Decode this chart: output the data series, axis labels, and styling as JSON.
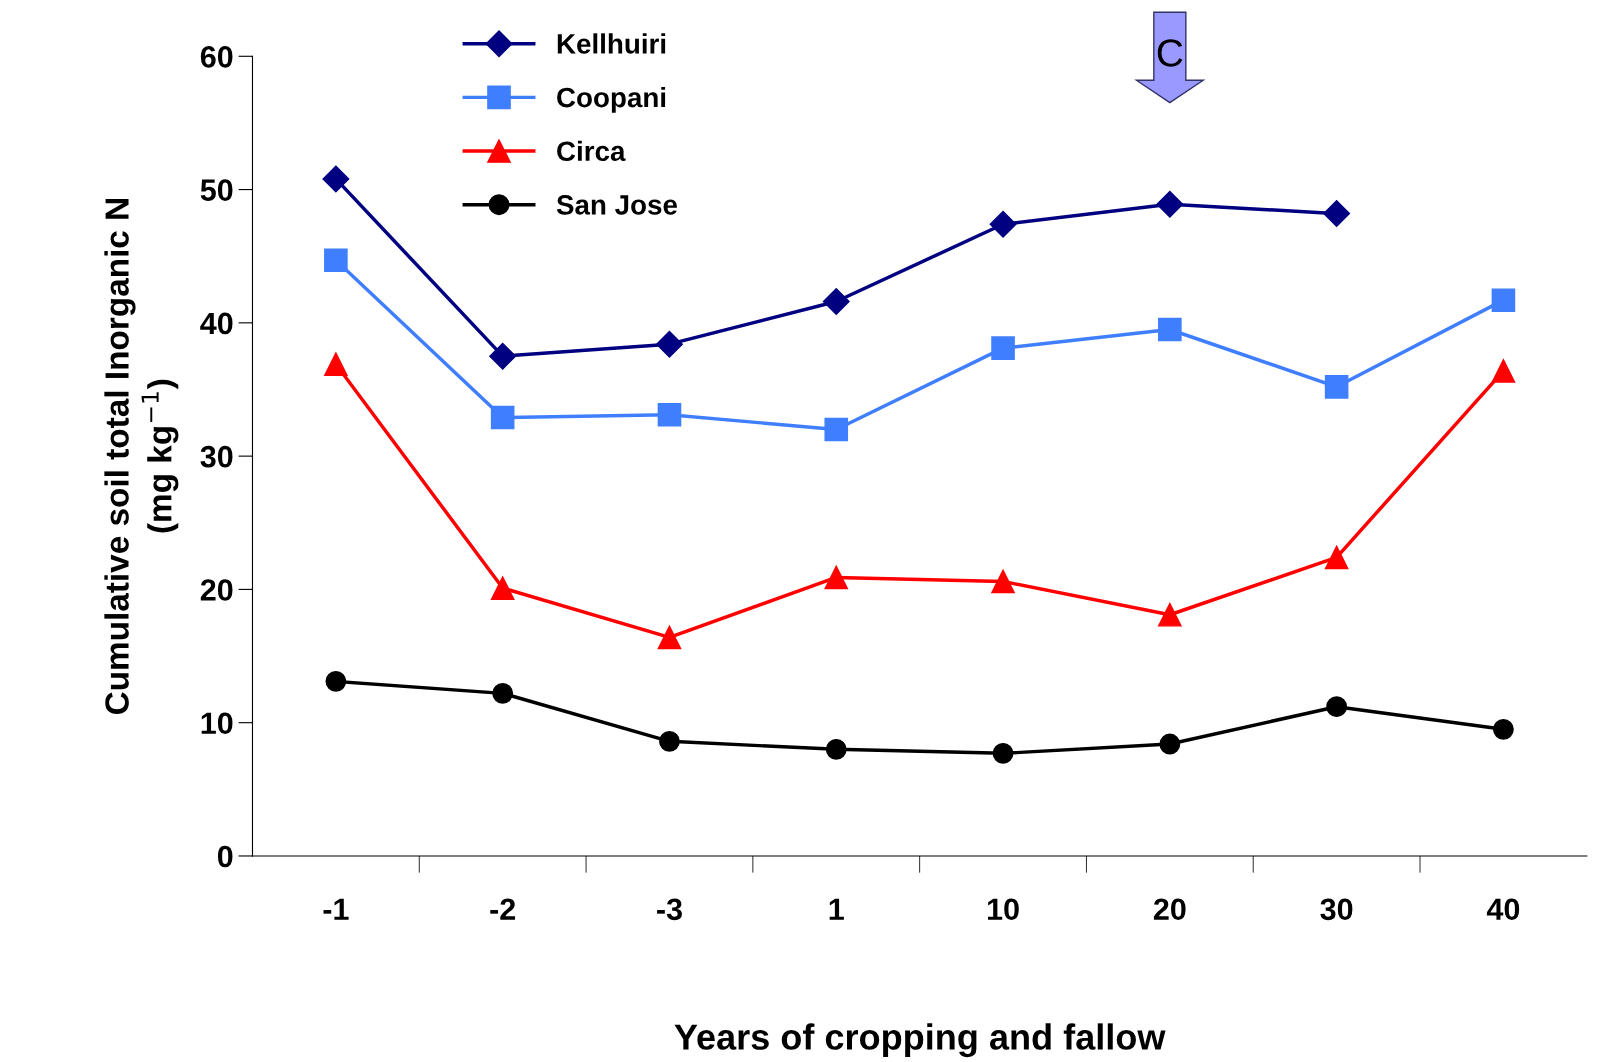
{
  "chart_data": {
    "type": "line",
    "xlabel": "Years of cropping and fallow",
    "ylabel": "Cumulative soil total Inorganic N\n(mg kg$^{−1}$)",
    "categories": [
      "-1",
      "-2",
      "-3",
      "1",
      "10",
      "20",
      "30",
      "40"
    ],
    "series": [
      {
        "name": "Kellhuiri",
        "color": "#000080",
        "marker": "diamond",
        "values": [
          50.8,
          37.5,
          38.4,
          41.6,
          47.4,
          48.9,
          48.2,
          null
        ]
      },
      {
        "name": "Coopani",
        "color": "#3f7fff",
        "marker": "square",
        "values": [
          44.7,
          32.9,
          33.1,
          32.0,
          38.1,
          39.5,
          35.2,
          41.7
        ]
      },
      {
        "name": "Circa",
        "color": "#ff0000",
        "marker": "triangle",
        "values": [
          36.9,
          20.1,
          16.4,
          20.9,
          20.6,
          18.1,
          22.4,
          36.4
        ]
      },
      {
        "name": "San Jose",
        "color": "#000000",
        "marker": "circle",
        "values": [
          13.1,
          12.2,
          8.6,
          8.0,
          7.7,
          8.4,
          11.2,
          9.5
        ]
      }
    ],
    "ylim": [
      0,
      60
    ],
    "yticks": [
      0,
      10,
      20,
      30,
      40,
      50,
      60
    ],
    "annotations": [
      "C"
    ],
    "grid": false,
    "legend": "top left",
    "line_style": "solid"
  }
}
